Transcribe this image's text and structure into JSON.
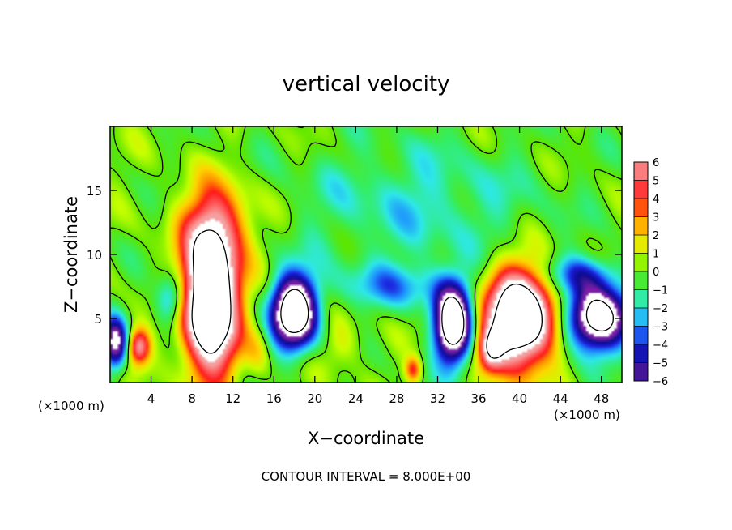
{
  "chart_data": {
    "type": "heatmap",
    "title": "vertical velocity",
    "xlabel": "X−coordinate",
    "ylabel": "Z−coordinate",
    "x_unit_left": "(×1000 m)",
    "x_unit_right": "(×1000 m)",
    "footer": "CONTOUR INTERVAL = 8.000E+00",
    "xlim": [
      0,
      50
    ],
    "ylim": [
      0,
      20
    ],
    "x_ticks": [
      4,
      8,
      12,
      16,
      20,
      24,
      28,
      32,
      36,
      40,
      44,
      48
    ],
    "x_tick_labels": [
      "4",
      "8",
      "12",
      "16",
      "20",
      "24",
      "28",
      "32",
      "36",
      "40",
      "44",
      "48"
    ],
    "y_ticks": [
      5,
      10,
      15
    ],
    "y_tick_labels": [
      "5",
      "10",
      "15"
    ],
    "colorbar": {
      "min": -6,
      "max": 6,
      "labels": [
        "6",
        "5",
        "4",
        "3",
        "2",
        "1",
        "0",
        "−1",
        "−2",
        "−3",
        "−4",
        "−5",
        "−6"
      ],
      "colors": [
        "#f5a0a0",
        "#ff5a5a",
        "#ff1a1a",
        "#ff8c00",
        "#ffd500",
        "#c8ff00",
        "#5de600",
        "#33ee66",
        "#2ee8e8",
        "#1e90ff",
        "#1c1cdc",
        "#0b0b8b",
        "#7a1fa6"
      ]
    },
    "features": [
      {
        "x": 9.8,
        "z": 6.5,
        "rx": 2.6,
        "rz": 5.5,
        "w": 14
      },
      {
        "x": 40.0,
        "z": 5.0,
        "rx": 3.3,
        "rz": 3.7,
        "w": 13
      },
      {
        "x": 2.8,
        "z": 2.8,
        "rx": 1.1,
        "rz": 1.4,
        "w": 6
      },
      {
        "x": 37.2,
        "z": 2.6,
        "rx": 1.2,
        "rz": 1.6,
        "w": 5
      },
      {
        "x": 29.6,
        "z": 1.0,
        "rx": 0.8,
        "rz": 1.0,
        "w": 4
      },
      {
        "x": 10.5,
        "z": 12.5,
        "rx": 3.5,
        "rz": 3.2,
        "w": 3.5
      },
      {
        "x": 22.5,
        "z": 3.0,
        "rx": 2.0,
        "rz": 2.0,
        "w": 1.5
      },
      {
        "x": 18.0,
        "z": 5.5,
        "rx": 2.2,
        "rz": 2.8,
        "w": -11
      },
      {
        "x": 33.5,
        "z": 4.5,
        "rx": 1.8,
        "rz": 3.0,
        "w": -11
      },
      {
        "x": 47.5,
        "z": 5.0,
        "rx": 3.0,
        "rz": 2.5,
        "w": -10
      },
      {
        "x": 0.5,
        "z": 3.0,
        "rx": 1.2,
        "rz": 2.0,
        "w": -7
      },
      {
        "x": 6.0,
        "z": 6.5,
        "rx": 1.5,
        "rz": 2.0,
        "w": -4
      },
      {
        "x": 28.0,
        "z": 7.5,
        "rx": 6.0,
        "rz": 1.8,
        "w": -2.5
      },
      {
        "x": 30.0,
        "z": 14.0,
        "rx": 12.0,
        "rz": 5.0,
        "w": -1.8
      },
      {
        "x": 46.0,
        "z": 8.5,
        "rx": 3.5,
        "rz": 1.5,
        "w": -3.5
      },
      {
        "x": 14.5,
        "z": 2.5,
        "rx": 1.2,
        "rz": 2.0,
        "w": 1.5
      }
    ]
  }
}
